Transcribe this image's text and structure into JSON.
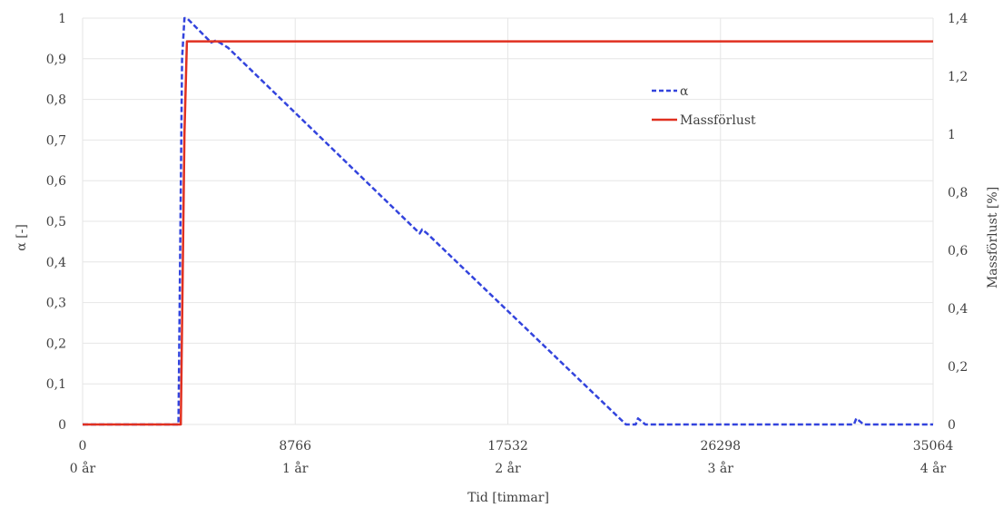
{
  "chart_data": {
    "type": "line",
    "xlabel": "Tid [timmar]",
    "ylabel_left": "α [-]",
    "ylabel_right": "Massförlust [%]",
    "xlim": [
      0,
      35064
    ],
    "ylim_left": [
      0,
      1
    ],
    "ylim_right": [
      0,
      1.4
    ],
    "x_ticks": [
      0,
      8766,
      17532,
      26298,
      35064
    ],
    "x_tick_labels": [
      "0",
      "8766",
      "17532",
      "26298",
      "35064"
    ],
    "x_secondary_tick_labels": [
      "0 år",
      "1 år",
      "2 år",
      "3 år",
      "4 år"
    ],
    "y_left_ticks": [
      0,
      0.1,
      0.2,
      0.3,
      0.4,
      0.5,
      0.6,
      0.7,
      0.8,
      0.9,
      1
    ],
    "y_left_tick_labels": [
      "0",
      "0,1",
      "0,2",
      "0,3",
      "0,4",
      "0,5",
      "0,6",
      "0,7",
      "0,8",
      "0,9",
      "1"
    ],
    "y_right_ticks": [
      0,
      0.2,
      0.4,
      0.6,
      0.8,
      1,
      1.2,
      1.4
    ],
    "y_right_tick_labels": [
      "0",
      "0,2",
      "0,4",
      "0,6",
      "0,8",
      "1",
      "1,2",
      "1,4"
    ],
    "grid": true,
    "legend_position": "upper-right-inside",
    "series": [
      {
        "name": "α",
        "axis": "left",
        "style": "dashed",
        "color": "#3344dd",
        "x": [
          0,
          3950,
          4100,
          4200,
          4300,
          5300,
          5500,
          5650,
          6000,
          13900,
          14000,
          14200,
          22400,
          22800,
          22900,
          23200,
          31800,
          31900,
          32200,
          35064
        ],
        "y": [
          0,
          0,
          0.9,
          1.0,
          1.0,
          0.94,
          0.945,
          0.94,
          0.927,
          0.47,
          0.48,
          0.47,
          0.0,
          0.0,
          0.015,
          0.0,
          0.0,
          0.015,
          0.0,
          0.0
        ]
      },
      {
        "name": "Massförlust",
        "axis": "right",
        "style": "solid",
        "color": "#e03020",
        "x": [
          0,
          4050,
          4200,
          4300,
          35064
        ],
        "y": [
          0,
          0,
          1.0,
          1.32,
          1.32
        ]
      }
    ]
  }
}
